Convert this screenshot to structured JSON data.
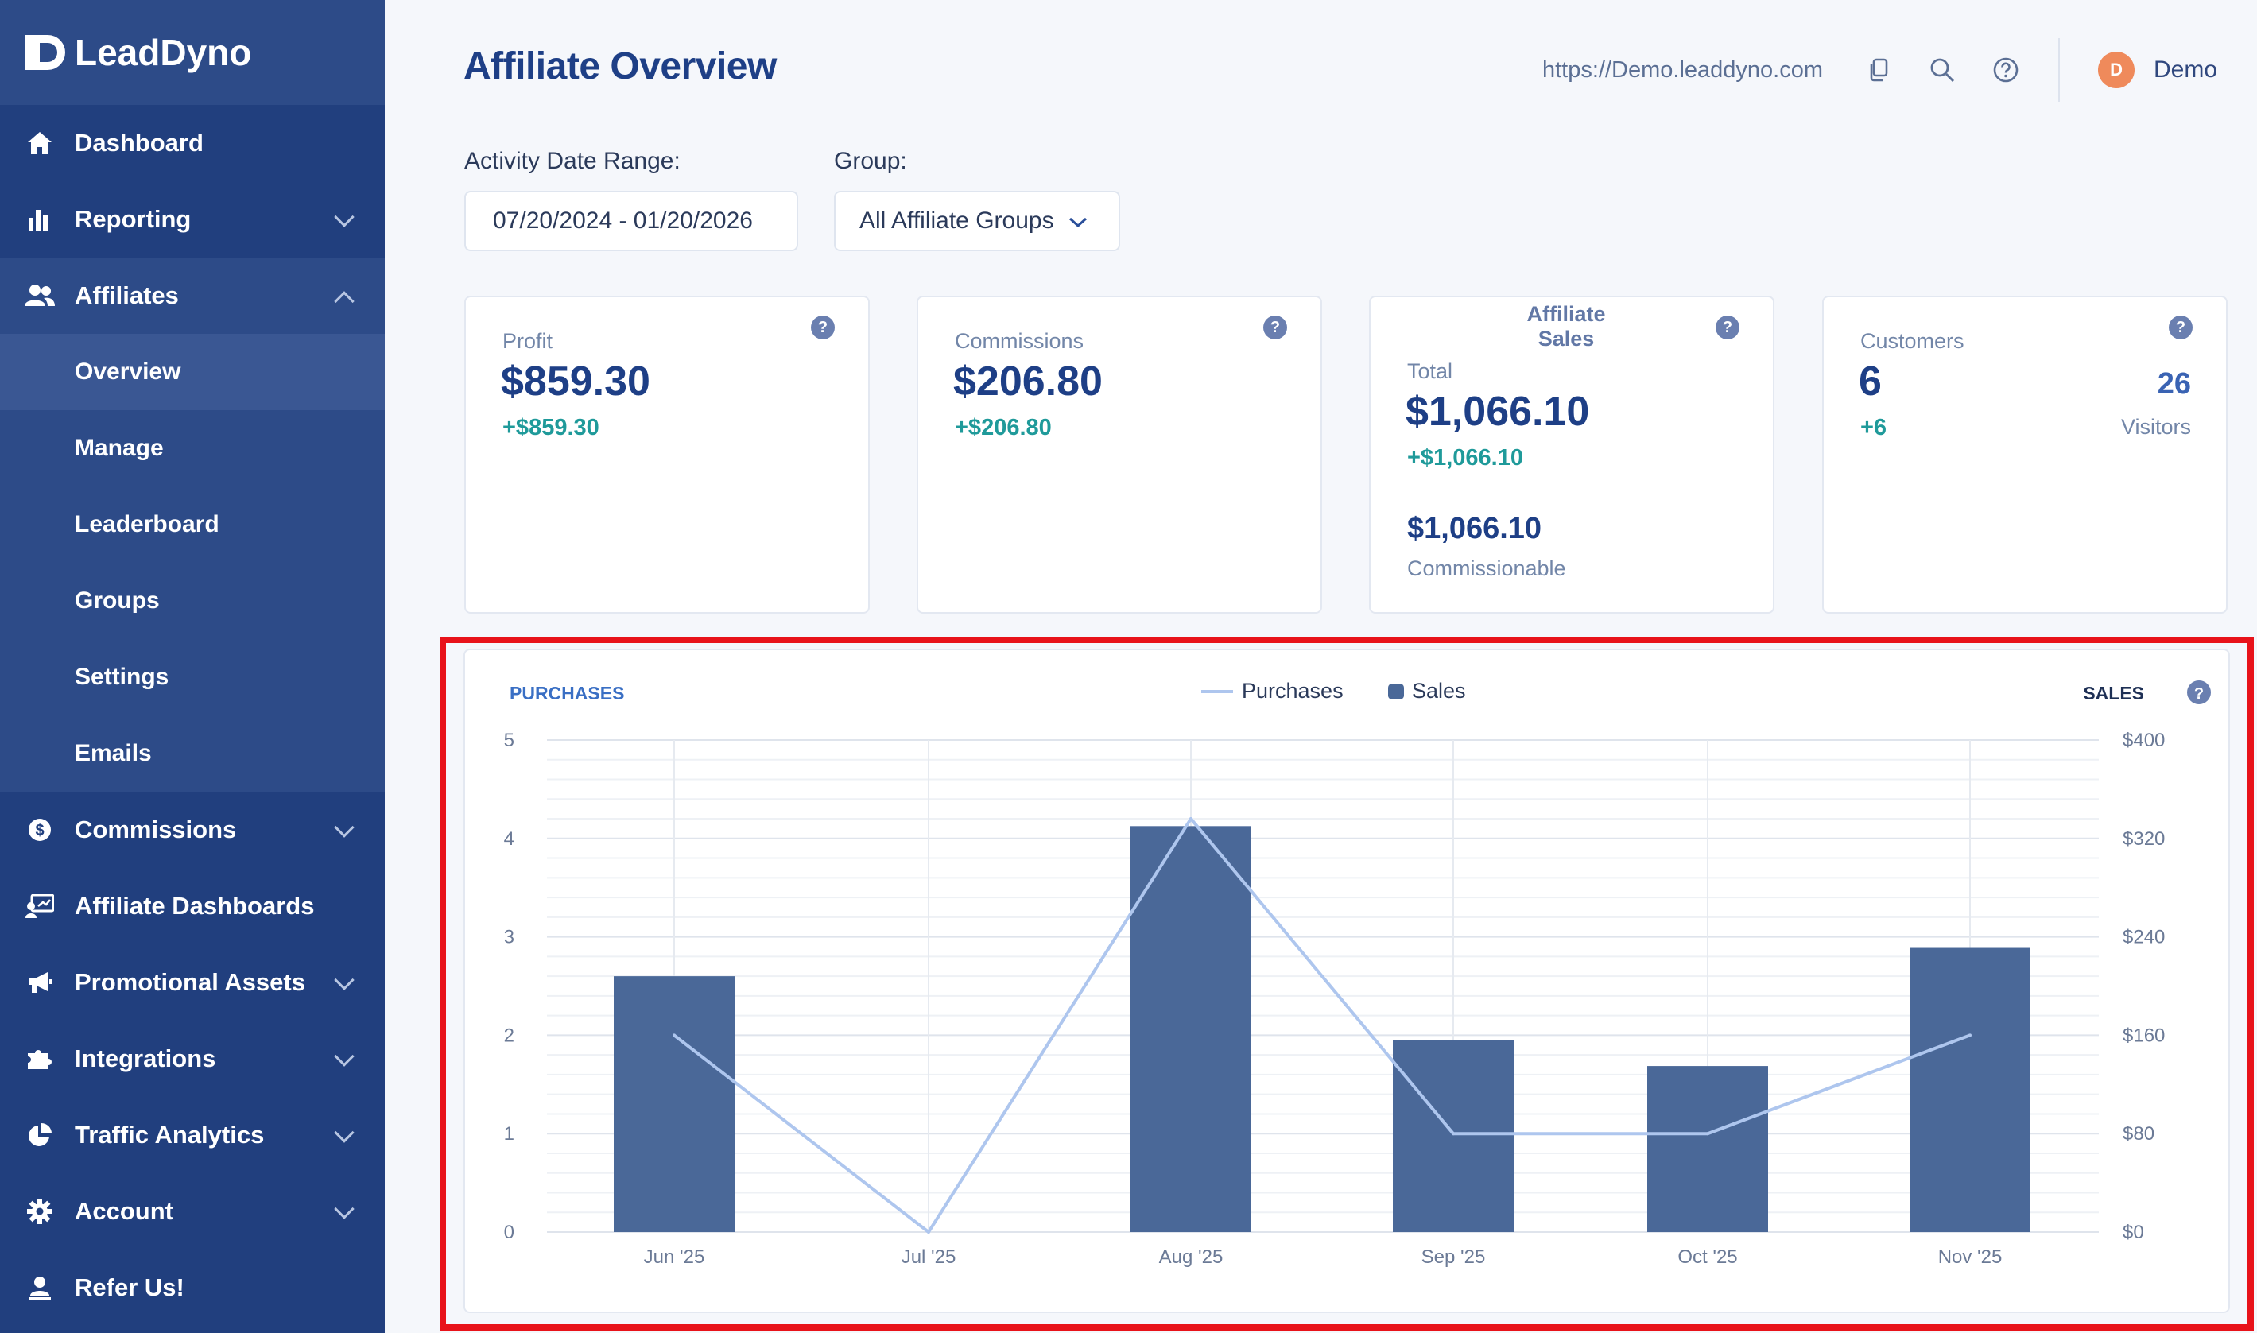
{
  "brand": {
    "name": "LeadDyno"
  },
  "sidebar": {
    "items": [
      {
        "label": "Dashboard",
        "icon": "home-icon",
        "has_chevron": false
      },
      {
        "label": "Reporting",
        "icon": "bar-chart-icon",
        "has_chevron": true
      },
      {
        "label": "Affiliates",
        "icon": "users-icon",
        "has_chevron": true,
        "expanded": true,
        "subitems": [
          "Overview",
          "Manage",
          "Leaderboard",
          "Groups",
          "Settings",
          "Emails"
        ],
        "active_subitem": "Overview"
      },
      {
        "label": "Commissions",
        "icon": "dollar-icon",
        "has_chevron": true
      },
      {
        "label": "Affiliate Dashboards",
        "icon": "presentation-icon",
        "has_chevron": false
      },
      {
        "label": "Promotional Assets",
        "icon": "megaphone-icon",
        "has_chevron": true
      },
      {
        "label": "Integrations",
        "icon": "puzzle-icon",
        "has_chevron": true
      },
      {
        "label": "Traffic Analytics",
        "icon": "pie-chart-icon",
        "has_chevron": true
      },
      {
        "label": "Account",
        "icon": "gear-icon",
        "has_chevron": true
      },
      {
        "label": "Refer Us!",
        "icon": "refer-icon",
        "has_chevron": false
      }
    ]
  },
  "header": {
    "title": "Affiliate Overview",
    "site_url": "https://Demo.leaddyno.com",
    "user_initial": "D",
    "user_name": "Demo"
  },
  "filters": {
    "date_range_label": "Activity Date Range:",
    "date_range_value": "07/20/2024 - 01/20/2026",
    "group_label": "Group:",
    "group_value": "All Affiliate Groups"
  },
  "cards": {
    "profit": {
      "label": "Profit",
      "value": "$859.30",
      "delta": "+$859.30"
    },
    "commissions": {
      "label": "Commissions",
      "value": "$206.80",
      "delta": "+$206.80"
    },
    "affiliate_sales": {
      "title": "Affiliate Sales",
      "total_label": "Total",
      "total_value": "$1,066.10",
      "delta": "+$1,066.10",
      "commissionable_value": "$1,066.10",
      "commissionable_label": "Commissionable"
    },
    "customers": {
      "label": "Customers",
      "value": "6",
      "delta": "+6",
      "visitors_value": "26",
      "visitors_label": "Visitors"
    }
  },
  "chart_data": {
    "type": "bar",
    "left_axis_title": "PURCHASES",
    "right_axis_title": "SALES",
    "categories": [
      "Jun '25",
      "Jul '25",
      "Aug '25",
      "Sep '25",
      "Oct '25",
      "Nov '25"
    ],
    "left_ticks": [
      "0",
      "1",
      "2",
      "3",
      "4",
      "5"
    ],
    "right_ticks": [
      "$0",
      "$80",
      "$160",
      "$240",
      "$320",
      "$400"
    ],
    "left_ylim": [
      0,
      5
    ],
    "right_ylim": [
      0,
      400
    ],
    "legend_position": "top-center",
    "series": [
      {
        "name": "Purchases",
        "kind": "line",
        "axis": "left",
        "color": "#aec6ee",
        "values": [
          2,
          0,
          4.2,
          1,
          1,
          2
        ]
      },
      {
        "name": "Sales",
        "kind": "bar",
        "axis": "right",
        "color": "#4a6898",
        "values": [
          208,
          0,
          330,
          156,
          135,
          231
        ]
      }
    ],
    "grid": true
  }
}
